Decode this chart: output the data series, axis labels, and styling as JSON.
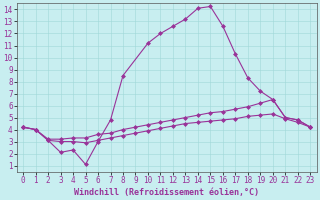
{
  "xlabel": "Windchill (Refroidissement éolien,°C)",
  "bg_color": "#c8eef0",
  "line_color": "#993399",
  "xlim": [
    -0.5,
    23.5
  ],
  "ylim": [
    0.5,
    14.5
  ],
  "xticks": [
    0,
    1,
    2,
    3,
    4,
    5,
    6,
    7,
    8,
    9,
    10,
    11,
    12,
    13,
    14,
    15,
    16,
    17,
    18,
    19,
    20,
    21,
    22,
    23
  ],
  "yticks": [
    1,
    2,
    3,
    4,
    5,
    6,
    7,
    8,
    9,
    10,
    11,
    12,
    13,
    14
  ],
  "line1_x": [
    0,
    1,
    2,
    3,
    4,
    5,
    6,
    7,
    8,
    10,
    11,
    12,
    13,
    14,
    15,
    16,
    17,
    18,
    19,
    20,
    21,
    22,
    23
  ],
  "line1_y": [
    4.2,
    4.0,
    3.1,
    2.1,
    2.3,
    1.1,
    3.0,
    4.8,
    8.5,
    11.2,
    12.0,
    12.6,
    13.2,
    14.1,
    14.25,
    12.6,
    10.3,
    8.3,
    7.2,
    6.5,
    5.0,
    4.8,
    4.2
  ],
  "line2_x": [
    0,
    1,
    2,
    3,
    4,
    5,
    6,
    7,
    8,
    9,
    10,
    11,
    12,
    13,
    14,
    15,
    16,
    17,
    18,
    19,
    20,
    21,
    22,
    23
  ],
  "line2_y": [
    4.2,
    4.0,
    3.2,
    3.2,
    3.3,
    3.3,
    3.6,
    3.7,
    4.0,
    4.2,
    4.4,
    4.6,
    4.8,
    5.0,
    5.2,
    5.4,
    5.5,
    5.7,
    5.9,
    6.2,
    6.5,
    5.0,
    4.8,
    4.2
  ],
  "line3_x": [
    0,
    1,
    2,
    3,
    4,
    5,
    6,
    7,
    8,
    9,
    10,
    11,
    12,
    13,
    14,
    15,
    16,
    17,
    18,
    19,
    20,
    21,
    22,
    23
  ],
  "line3_y": [
    4.2,
    4.0,
    3.1,
    3.0,
    3.0,
    2.9,
    3.1,
    3.3,
    3.5,
    3.7,
    3.9,
    4.1,
    4.3,
    4.5,
    4.6,
    4.7,
    4.8,
    4.9,
    5.1,
    5.2,
    5.3,
    4.9,
    4.6,
    4.2
  ],
  "marker": "D",
  "marker_size": 2.0,
  "linewidth": 0.8,
  "tick_fontsize": 5.5,
  "label_fontsize": 6.0,
  "grid_color": "#a0d8d8",
  "grid_linewidth": 0.4
}
